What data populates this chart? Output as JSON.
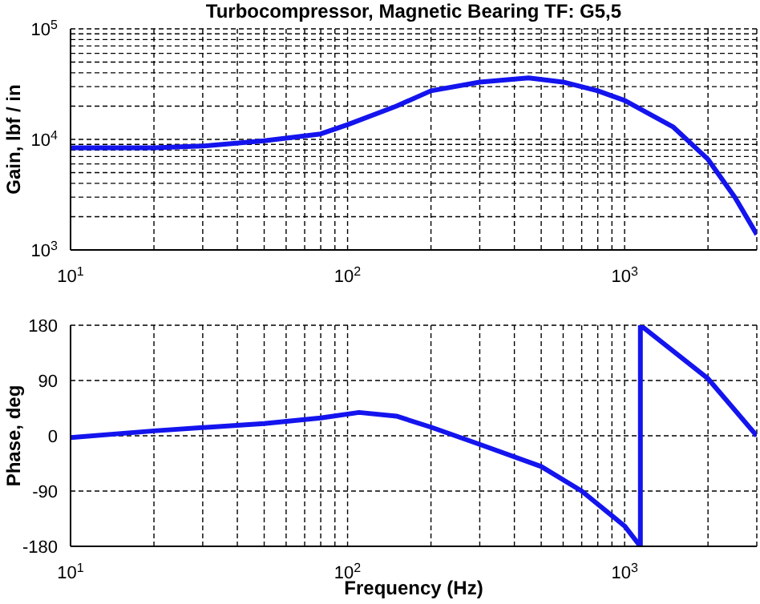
{
  "chart_data": [
    {
      "type": "line",
      "title": "Turbocompressor, Magnetic Bearing TF: G5,5",
      "ylabel": "Gain, lbf / in",
      "log": "xy",
      "grid": true,
      "x": [
        10,
        20,
        30,
        50,
        80,
        100,
        150,
        200,
        300,
        450,
        600,
        800,
        1000,
        1500,
        2000,
        2500,
        3000
      ],
      "series": [
        {
          "color": "#1414ee",
          "values": [
            8400,
            8400,
            8700,
            9700,
            11200,
            13600,
            20000,
            27500,
            33000,
            36000,
            33000,
            27500,
            22500,
            12900,
            6600,
            3000,
            1380
          ]
        }
      ],
      "xlim": [
        10,
        3000
      ],
      "xticks": [
        {
          "value": 10,
          "label": "10$^{1}$"
        },
        {
          "value": 20,
          "label": null
        },
        {
          "value": 30,
          "label": null
        },
        {
          "value": 40,
          "label": null
        },
        {
          "value": 50,
          "label": null
        },
        {
          "value": 60,
          "label": null
        },
        {
          "value": 70,
          "label": null
        },
        {
          "value": 80,
          "label": null
        },
        {
          "value": 90,
          "label": null
        },
        {
          "value": 100,
          "label": "10$^{2}$"
        },
        {
          "value": 200,
          "label": null
        },
        {
          "value": 300,
          "label": null
        },
        {
          "value": 400,
          "label": null
        },
        {
          "value": 500,
          "label": null
        },
        {
          "value": 600,
          "label": null
        },
        {
          "value": 700,
          "label": null
        },
        {
          "value": 800,
          "label": null
        },
        {
          "value": 900,
          "label": null
        },
        {
          "value": 1000,
          "label": "10$^{3}$"
        },
        {
          "value": 2000,
          "label": null
        }
      ],
      "ylim": [
        1000,
        100000
      ],
      "yticks": [
        {
          "value": 1000,
          "label": "10$^{3}$"
        },
        {
          "value": 2000,
          "label": null
        },
        {
          "value": 3000,
          "label": null
        },
        {
          "value": 4000,
          "label": null
        },
        {
          "value": 5000,
          "label": null
        },
        {
          "value": 6000,
          "label": null
        },
        {
          "value": 7000,
          "label": null
        },
        {
          "value": 8000,
          "label": null
        },
        {
          "value": 9000,
          "label": null
        },
        {
          "value": 10000,
          "label": "10$^{4}$"
        },
        {
          "value": 20000,
          "label": null
        },
        {
          "value": 30000,
          "label": null
        },
        {
          "value": 40000,
          "label": null
        },
        {
          "value": 50000,
          "label": null
        },
        {
          "value": 60000,
          "label": null
        },
        {
          "value": 70000,
          "label": null
        },
        {
          "value": 80000,
          "label": null
        },
        {
          "value": 90000,
          "label": null
        },
        {
          "value": 100000,
          "label": "10$^{5}$"
        }
      ]
    },
    {
      "type": "line",
      "xlabel": "Frequency (Hz)",
      "ylabel": "Phase, deg",
      "log": "x",
      "grid": true,
      "x": [
        10,
        20,
        50,
        80,
        110,
        150,
        200,
        300,
        500,
        700,
        1000,
        1140,
        1140,
        2000,
        3000
      ],
      "series": [
        {
          "color": "#1414ee",
          "values": [
            -3,
            8,
            20,
            29,
            38,
            32,
            14,
            -14,
            -50,
            -90,
            -147,
            -180,
            180,
            93,
            0
          ]
        }
      ],
      "xlim": [
        10,
        3000
      ],
      "xticks": [
        {
          "value": 10,
          "label": "10$^{1}$"
        },
        {
          "value": 20,
          "label": null
        },
        {
          "value": 30,
          "label": null
        },
        {
          "value": 40,
          "label": null
        },
        {
          "value": 50,
          "label": null
        },
        {
          "value": 60,
          "label": null
        },
        {
          "value": 70,
          "label": null
        },
        {
          "value": 80,
          "label": null
        },
        {
          "value": 90,
          "label": null
        },
        {
          "value": 100,
          "label": "10$^{2}$"
        },
        {
          "value": 200,
          "label": null
        },
        {
          "value": 300,
          "label": null
        },
        {
          "value": 400,
          "label": null
        },
        {
          "value": 500,
          "label": null
        },
        {
          "value": 600,
          "label": null
        },
        {
          "value": 700,
          "label": null
        },
        {
          "value": 800,
          "label": null
        },
        {
          "value": 900,
          "label": null
        },
        {
          "value": 1000,
          "label": "10$^{3}$"
        },
        {
          "value": 2000,
          "label": null
        }
      ],
      "ylim": [
        -180,
        180
      ],
      "yticks": [
        -180,
        -90,
        0,
        90,
        180
      ]
    }
  ]
}
